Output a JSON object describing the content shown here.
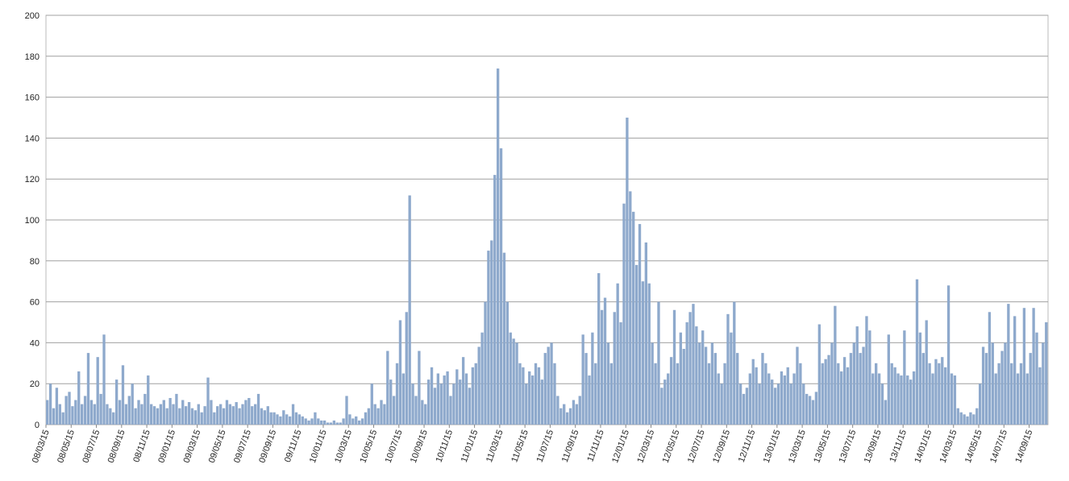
{
  "chart_data": {
    "type": "bar",
    "color": "#8ea9cc",
    "grid": true,
    "ylim": [
      0,
      200
    ],
    "yticks": [
      0,
      20,
      40,
      60,
      80,
      100,
      120,
      140,
      160,
      180,
      200
    ],
    "categories": [
      "08/03/15",
      null,
      null,
      null,
      null,
      null,
      null,
      null,
      "08/05/15",
      null,
      null,
      null,
      null,
      null,
      null,
      null,
      "08/07/15",
      null,
      null,
      null,
      null,
      null,
      null,
      null,
      "08/09/15",
      null,
      null,
      null,
      null,
      null,
      null,
      null,
      "08/11/15",
      null,
      null,
      null,
      null,
      null,
      null,
      null,
      "09/01/15",
      null,
      null,
      null,
      null,
      null,
      null,
      null,
      "09/03/15",
      null,
      null,
      null,
      null,
      null,
      null,
      null,
      "09/05/15",
      null,
      null,
      null,
      null,
      null,
      null,
      null,
      "09/07/15",
      null,
      null,
      null,
      null,
      null,
      null,
      null,
      "09/09/15",
      null,
      null,
      null,
      null,
      null,
      null,
      null,
      "09/11/15",
      null,
      null,
      null,
      null,
      null,
      null,
      null,
      "10/01/15",
      null,
      null,
      null,
      null,
      null,
      null,
      null,
      "10/03/15",
      null,
      null,
      null,
      null,
      null,
      null,
      null,
      "10/05/15",
      null,
      null,
      null,
      null,
      null,
      null,
      null,
      "10/07/15",
      null,
      null,
      null,
      null,
      null,
      null,
      null,
      "10/09/15",
      null,
      null,
      null,
      null,
      null,
      null,
      null,
      "10/11/15",
      null,
      null,
      null,
      null,
      null,
      null,
      null,
      "11/01/15",
      null,
      null,
      null,
      null,
      null,
      null,
      null,
      "11/03/15",
      null,
      null,
      null,
      null,
      null,
      null,
      null,
      "11/05/15",
      null,
      null,
      null,
      null,
      null,
      null,
      null,
      "11/07/15",
      null,
      null,
      null,
      null,
      null,
      null,
      null,
      "11/09/15",
      null,
      null,
      null,
      null,
      null,
      null,
      null,
      "11/11/15",
      null,
      null,
      null,
      null,
      null,
      null,
      null,
      "12/01/15",
      null,
      null,
      null,
      null,
      null,
      null,
      null,
      "12/03/15",
      null,
      null,
      null,
      null,
      null,
      null,
      null,
      "12/05/15",
      null,
      null,
      null,
      null,
      null,
      null,
      null,
      "12/07/15",
      null,
      null,
      null,
      null,
      null,
      null,
      null,
      "12/09/15",
      null,
      null,
      null,
      null,
      null,
      null,
      null,
      "12/11/15",
      null,
      null,
      null,
      null,
      null,
      null,
      null,
      "13/01/15",
      null,
      null,
      null,
      null,
      null,
      null,
      null,
      "13/03/15",
      null,
      null,
      null,
      null,
      null,
      null,
      null,
      "13/05/15",
      null,
      null,
      null,
      null,
      null,
      null,
      null,
      "13/07/15",
      null,
      null,
      null,
      null,
      null,
      null,
      null,
      "13/09/15",
      null,
      null,
      null,
      null,
      null,
      null,
      null,
      "13/11/15",
      null,
      null,
      null,
      null,
      null,
      null,
      null,
      "14/01/15",
      null,
      null,
      null,
      null,
      null,
      null,
      null,
      "14/03/15",
      null,
      null,
      null,
      null,
      null,
      null,
      null,
      "14/05/15",
      null,
      null,
      null,
      null,
      null,
      null,
      null,
      "14/07/15",
      null,
      null,
      null,
      null,
      null,
      null,
      null,
      "14/09/15",
      null,
      null,
      null,
      null,
      null
    ],
    "values": [
      12,
      20,
      8,
      18,
      10,
      6,
      14,
      16,
      9,
      12,
      26,
      10,
      14,
      35,
      12,
      10,
      33,
      15,
      44,
      10,
      8,
      6,
      22,
      12,
      29,
      10,
      14,
      20,
      8,
      12,
      10,
      15,
      24,
      10,
      9,
      8,
      10,
      12,
      8,
      13,
      10,
      15,
      8,
      12,
      9,
      11,
      8,
      7,
      10,
      6,
      9,
      23,
      12,
      6,
      9,
      10,
      8,
      12,
      10,
      9,
      11,
      8,
      10,
      12,
      13,
      9,
      10,
      15,
      8,
      7,
      9,
      6,
      6,
      5,
      4,
      7,
      5,
      4,
      10,
      6,
      5,
      4,
      3,
      2,
      3,
      6,
      3,
      2,
      2,
      1,
      1,
      2,
      1,
      1,
      3,
      14,
      5,
      3,
      4,
      2,
      3,
      6,
      8,
      20,
      10,
      8,
      12,
      10,
      36,
      22,
      14,
      30,
      51,
      25,
      55,
      112,
      20,
      14,
      36,
      12,
      10,
      22,
      28,
      18,
      25,
      20,
      24,
      26,
      14,
      20,
      27,
      22,
      33,
      25,
      18,
      28,
      30,
      38,
      45,
      60,
      85,
      90,
      122,
      174,
      135,
      84,
      60,
      45,
      42,
      40,
      30,
      28,
      20,
      26,
      24,
      30,
      28,
      22,
      35,
      38,
      40,
      30,
      14,
      8,
      10,
      6,
      8,
      12,
      10,
      14,
      44,
      35,
      24,
      45,
      30,
      74,
      56,
      62,
      40,
      30,
      55,
      69,
      50,
      108,
      150,
      114,
      104,
      78,
      98,
      70,
      89,
      69,
      40,
      30,
      60,
      18,
      22,
      25,
      33,
      56,
      30,
      45,
      37,
      50,
      55,
      59,
      48,
      40,
      46,
      38,
      30,
      40,
      35,
      25,
      20,
      30,
      54,
      45,
      60,
      35,
      20,
      15,
      18,
      25,
      32,
      28,
      20,
      35,
      30,
      25,
      22,
      18,
      20,
      26,
      24,
      28,
      20,
      25,
      38,
      30,
      20,
      15,
      14,
      12,
      16,
      49,
      30,
      32,
      34,
      40,
      58,
      30,
      26,
      33,
      28,
      35,
      40,
      48,
      35,
      38,
      53,
      46,
      25,
      30,
      25,
      20,
      12,
      44,
      30,
      28,
      25,
      24,
      46,
      24,
      22,
      26,
      71,
      45,
      35,
      51,
      30,
      25,
      32,
      30,
      33,
      28,
      68,
      25,
      24,
      8,
      6,
      5,
      4,
      6,
      5,
      8,
      20,
      38,
      35,
      55,
      40,
      25,
      30,
      36,
      40,
      59,
      30,
      53,
      25,
      30,
      57,
      25,
      35,
      57,
      45,
      28,
      40,
      50
    ]
  }
}
